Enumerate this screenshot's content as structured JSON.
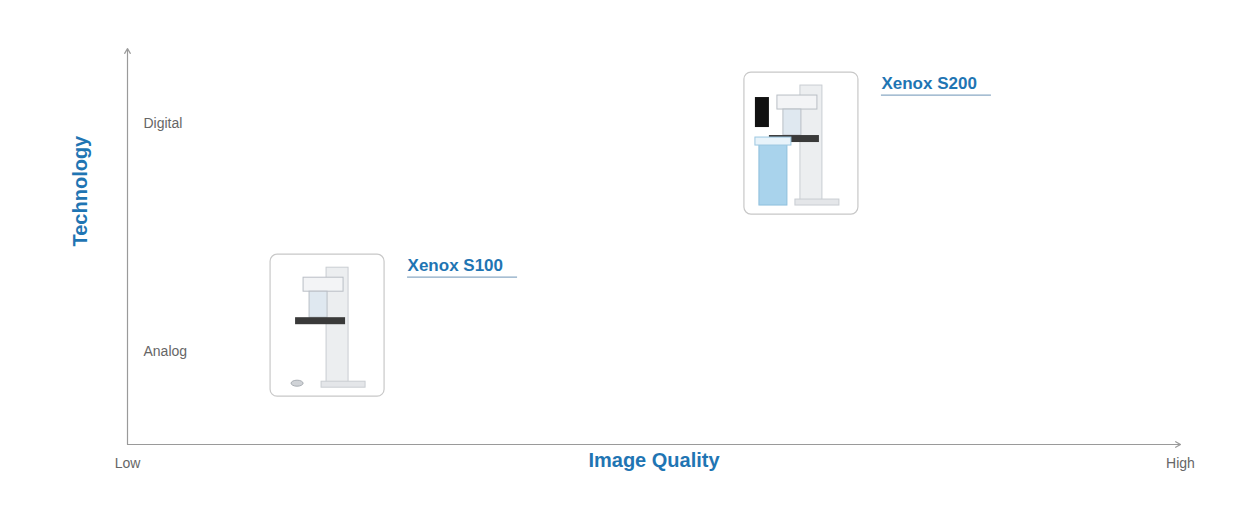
{
  "chart_data": {
    "type": "scatter",
    "xlabel": "Image Quality",
    "ylabel": "Technology",
    "xlim": [
      0,
      10
    ],
    "ylim": [
      0,
      10
    ],
    "xticks": [
      {
        "value": 0,
        "label": "Low"
      },
      {
        "value": 10,
        "label": "High"
      }
    ],
    "yticks": [
      {
        "value": 2.35,
        "label": "Analog"
      },
      {
        "value": 8.1,
        "label": "Digital"
      }
    ],
    "points": [
      {
        "label": "Xenox S100",
        "x": 1.9,
        "y": 3.0
      },
      {
        "label": "Xenox S200",
        "x": 6.4,
        "y": 7.6
      }
    ],
    "color": "#1f75b3",
    "grid": false
  }
}
